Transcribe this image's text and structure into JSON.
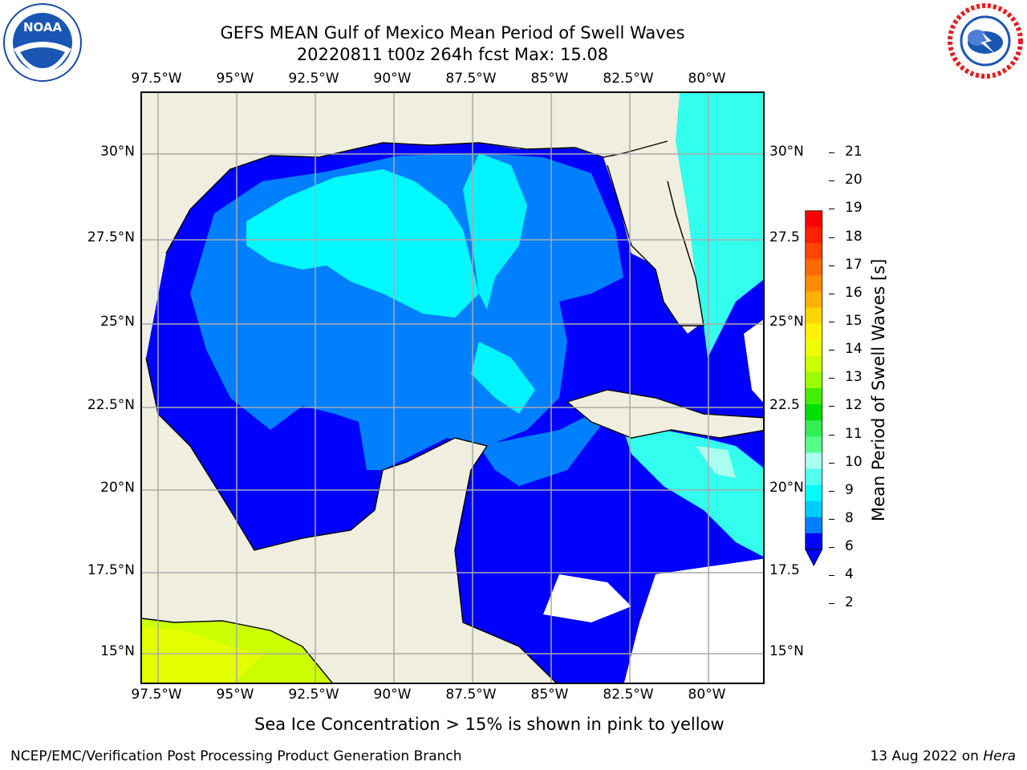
{
  "header": {
    "title_line1": "GEFS MEAN Gulf of Mexico Mean Period of Swell Waves",
    "title_line2": "20220811 t00z 264h fcst   Max: 15.08"
  },
  "logos": {
    "noaa_text": "NOAA",
    "noaa_ring_text": "NATIONAL OCEANIC AND ATMOSPHERIC ADMINISTRATION · U.S. DEPARTMENT OF COMMERCE",
    "nws_ring_text": "NATIONAL WEATHER SERVICE"
  },
  "axes": {
    "lon_labels": [
      "97.5°W",
      "95°W",
      "92.5°W",
      "90°W",
      "87.5°W",
      "85°W",
      "82.5°W",
      "80°W"
    ],
    "lat_labels_left": [
      "30°N",
      "27.5°N",
      "25°N",
      "22.5°N",
      "20°N",
      "17.5°N",
      "15°N"
    ],
    "lat_labels_right": [
      "30°N",
      "27.5",
      "25°N",
      "22.5",
      "20°N",
      "17.5",
      "15°N"
    ]
  },
  "colorbar": {
    "label": "Mean Period of Swell Waves [s]",
    "ticks": [
      "21",
      "20",
      "19",
      "18",
      "17",
      "16",
      "15",
      "14",
      "13",
      "12",
      "11",
      "10",
      "9",
      "8",
      "6",
      "4",
      "2"
    ],
    "colors_top_to_bottom": [
      "#ff0000",
      "#ff2000",
      "#ff4500",
      "#ff6a00",
      "#ff8c00",
      "#ffb000",
      "#ffd500",
      "#fff200",
      "#f0ff00",
      "#ccff00",
      "#99ff00",
      "#44ee00",
      "#00dd00",
      "#33ee55",
      "#55ff88",
      "#aaffee",
      "#55ffee",
      "#00ffff",
      "#00ccff",
      "#0080ff",
      "#0000ff"
    ]
  },
  "notes": {
    "sea_ice": "Sea Ice Concentration > 15% is shown in pink to yellow",
    "credit": "NCEP/EMC/Verification Post Processing Product Generation Branch",
    "date_prefix": "13 Aug 2022 on ",
    "date_machine": "Hera"
  }
}
